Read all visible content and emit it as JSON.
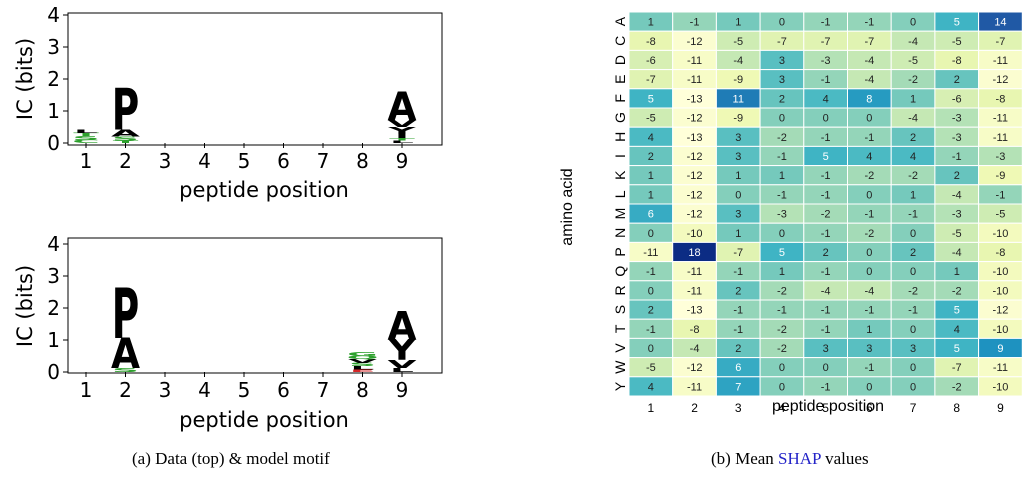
{
  "panel_a": {
    "top_plot": {
      "ylabel": "IC (bits)",
      "xlabel": "peptide position",
      "yticks": [
        "0",
        "1",
        "2",
        "3",
        "4"
      ],
      "xticks": [
        "1",
        "2",
        "3",
        "4",
        "5",
        "6",
        "7",
        "8",
        "9"
      ],
      "logos": [
        {
          "position": 1,
          "letters": [
            {
              "aa": "C",
              "height": 0.1
            },
            {
              "aa": "S",
              "height": 0.12
            },
            {
              "aa": "T",
              "height": 0.1
            },
            {
              "aa": "L",
              "height": 0.1
            }
          ]
        },
        {
          "position": 2,
          "letters": [
            {
              "aa": "T",
              "height": 0.08
            },
            {
              "aa": "S",
              "height": 0.12
            },
            {
              "aa": "A",
              "height": 0.22
            },
            {
              "aa": "P",
              "height": 1.3
            }
          ]
        },
        {
          "position": 9,
          "letters": [
            {
              "aa": "L",
              "height": 0.08
            },
            {
              "aa": "T",
              "height": 0.08
            },
            {
              "aa": "I",
              "height": 0.12
            },
            {
              "aa": "Y",
              "height": 0.22
            },
            {
              "aa": "V",
              "height": 0.22
            },
            {
              "aa": "A",
              "height": 0.9
            }
          ]
        }
      ]
    },
    "bottom_plot": {
      "ylabel": "IC (bits)",
      "xlabel": "peptide position",
      "yticks": [
        "0",
        "1",
        "2",
        "3",
        "4"
      ],
      "xticks": [
        "1",
        "2",
        "3",
        "4",
        "5",
        "6",
        "7",
        "8",
        "9"
      ],
      "logos": [
        {
          "position": 2,
          "letters": [
            {
              "aa": "S",
              "height": 0.12
            },
            {
              "aa": "A",
              "height": 0.95
            },
            {
              "aa": "P",
              "height": 1.6
            }
          ]
        },
        {
          "position": 8,
          "letters": [
            {
              "aa": "E",
              "height": 0.08
            },
            {
              "aa": "L",
              "height": 0.1
            },
            {
              "aa": "S",
              "height": 0.1
            },
            {
              "aa": "V",
              "height": 0.12
            },
            {
              "aa": "Q",
              "height": 0.1
            },
            {
              "aa": "G",
              "height": 0.12
            }
          ]
        },
        {
          "position": 9,
          "letters": [
            {
              "aa": "L",
              "height": 0.12
            },
            {
              "aa": "V",
              "height": 0.25
            },
            {
              "aa": "Y",
              "height": 0.65
            },
            {
              "aa": "A",
              "height": 0.9
            }
          ]
        }
      ]
    },
    "caption": "(a) Data (top) & model motif"
  },
  "panel_b": {
    "ylabel": "amino acid",
    "xlabel": "peptide position",
    "caption_prefix": "(b) Mean ",
    "caption_link": "SHAP",
    "caption_suffix": " values",
    "heatmap": {
      "rows": [
        "A",
        "C",
        "D",
        "E",
        "F",
        "G",
        "H",
        "I",
        "K",
        "L",
        "M",
        "N",
        "P",
        "Q",
        "R",
        "S",
        "T",
        "V",
        "W",
        "Y"
      ],
      "cols": [
        "1",
        "2",
        "3",
        "4",
        "5",
        "6",
        "7",
        "8",
        "9"
      ],
      "values": [
        [
          1,
          -1,
          1,
          0,
          -1,
          -1,
          0,
          5,
          14
        ],
        [
          -8,
          -12,
          -5,
          -7,
          -7,
          -7,
          -4,
          -5,
          -7
        ],
        [
          -6,
          -11,
          -4,
          3,
          -3,
          -4,
          -5,
          -8,
          -11
        ],
        [
          -7,
          -11,
          -9,
          3,
          -1,
          -4,
          -2,
          2,
          -12
        ],
        [
          5,
          -13,
          11,
          2,
          4,
          8,
          1,
          -6,
          -8
        ],
        [
          -5,
          -12,
          -9,
          0,
          0,
          0,
          -4,
          -3,
          -11
        ],
        [
          4,
          -13,
          3,
          -2,
          -1,
          -1,
          2,
          -3,
          -11
        ],
        [
          2,
          -12,
          3,
          -1,
          5,
          4,
          4,
          -1,
          -3
        ],
        [
          1,
          -12,
          1,
          1,
          -1,
          -2,
          -2,
          2,
          -9
        ],
        [
          1,
          -12,
          0,
          -1,
          -1,
          0,
          1,
          -4,
          -1
        ],
        [
          6,
          -12,
          3,
          -3,
          -2,
          -1,
          -1,
          -3,
          -5
        ],
        [
          0,
          -10,
          1,
          0,
          -1,
          -2,
          0,
          -5,
          -10
        ],
        [
          -11,
          18,
          -7,
          5,
          2,
          0,
          2,
          -4,
          -8
        ],
        [
          -1,
          -11,
          -1,
          1,
          -1,
          0,
          0,
          1,
          -10
        ],
        [
          0,
          -11,
          2,
          -2,
          -4,
          -4,
          -2,
          -2,
          -10
        ],
        [
          2,
          -13,
          -1,
          -1,
          -1,
          -1,
          -1,
          5,
          -12
        ],
        [
          -1,
          -8,
          -1,
          -2,
          -1,
          1,
          0,
          4,
          -10
        ],
        [
          0,
          -4,
          2,
          -2,
          3,
          3,
          3,
          5,
          9
        ],
        [
          -5,
          -12,
          6,
          0,
          0,
          -1,
          0,
          -7,
          -11
        ],
        [
          4,
          -11,
          7,
          0,
          -1,
          0,
          0,
          -2,
          -10
        ]
      ],
      "colormap": [
        "#ffffd9",
        "#edf8b1",
        "#c7e9b4",
        "#7fcdbb",
        "#41b6c4",
        "#1d91c0",
        "#225ea8",
        "#0c2c84"
      ]
    }
  }
}
